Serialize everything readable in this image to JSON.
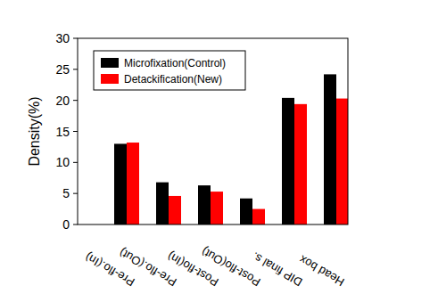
{
  "chart_data": {
    "type": "bar",
    "y_label": "Density(%)",
    "categories": [
      "Pre-flo.(In)",
      "Pre-flo.(Out)",
      "Post-flo(In)",
      "Post-flo(Out)",
      "DIP final s.",
      "Head box"
    ],
    "series": [
      {
        "name": "Microfixation(Control)",
        "color": "#000000",
        "values": [
          13.0,
          6.8,
          6.3,
          4.2,
          20.4,
          24.2
        ]
      },
      {
        "name": "Detackification(New)",
        "color": "#ff0000",
        "values": [
          13.2,
          4.6,
          5.3,
          2.5,
          19.4,
          20.3
        ]
      }
    ],
    "ylim": [
      0,
      30
    ],
    "yticks": [
      0,
      5,
      10,
      15,
      20,
      25,
      30
    ],
    "grid": false,
    "legend": "upper left"
  }
}
